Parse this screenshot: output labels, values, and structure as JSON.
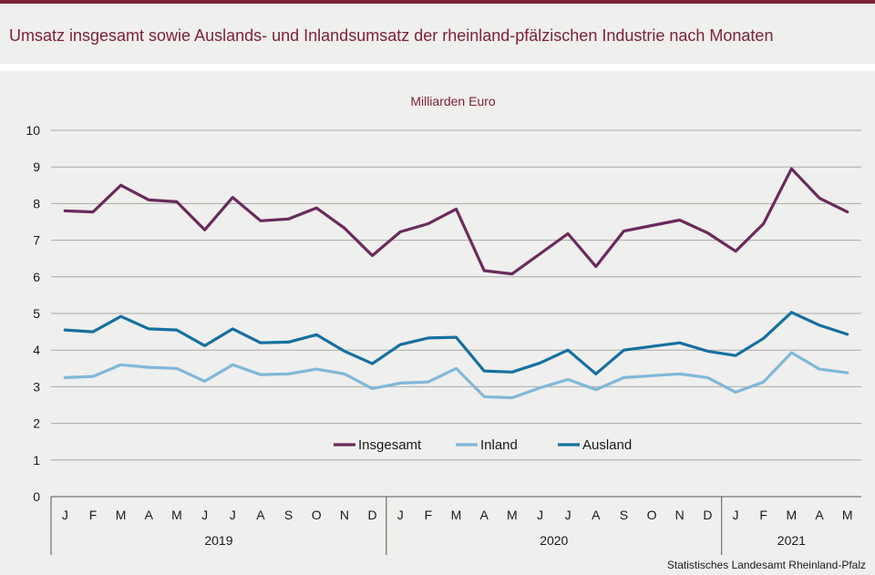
{
  "header": {
    "title": "Umsatz insgesamt sowie Auslands- und Inlandsumsatz der rheinland-pfälzischen Industrie nach Monaten"
  },
  "footer": {
    "source": "Statistisches Landesamt  Rheinland-Pfalz"
  },
  "chart_data": {
    "type": "line",
    "subtitle": "Milliarden Euro",
    "ylim": [
      0,
      10
    ],
    "yticks": [
      0,
      1,
      2,
      3,
      4,
      5,
      6,
      7,
      8,
      9,
      10
    ],
    "categories": [
      "J",
      "F",
      "M",
      "A",
      "M",
      "J",
      "J",
      "A",
      "S",
      "O",
      "N",
      "D",
      "J",
      "F",
      "M",
      "A",
      "M",
      "J",
      "J",
      "A",
      "S",
      "O",
      "N",
      "D",
      "J",
      "F",
      "M",
      "A",
      "M"
    ],
    "years": [
      {
        "label": "2019",
        "span": 12
      },
      {
        "label": "2020",
        "span": 12
      },
      {
        "label": "2021",
        "span": 5
      }
    ],
    "grid": true,
    "legend_position": "inside-bottom-center",
    "series": [
      {
        "name": "Insgesamt",
        "color": "#6a2a5c",
        "values": [
          7.8,
          7.77,
          8.5,
          8.1,
          8.05,
          7.28,
          8.17,
          7.53,
          7.58,
          7.88,
          7.33,
          6.58,
          7.23,
          7.45,
          7.85,
          6.17,
          6.08,
          6.63,
          7.18,
          6.28,
          7.25,
          7.4,
          7.55,
          7.2,
          6.7,
          7.45,
          8.95,
          8.15,
          7.77
        ]
      },
      {
        "name": "Inland",
        "color": "#7fb8d9",
        "values": [
          3.25,
          3.28,
          3.6,
          3.53,
          3.5,
          3.15,
          3.6,
          3.33,
          3.35,
          3.48,
          3.35,
          2.95,
          3.1,
          3.13,
          3.5,
          2.73,
          2.7,
          2.97,
          3.2,
          2.92,
          3.25,
          3.3,
          3.35,
          3.25,
          2.85,
          3.13,
          3.93,
          3.48,
          3.38
        ]
      },
      {
        "name": "Ausland",
        "color": "#1570a0",
        "values": [
          4.55,
          4.5,
          4.92,
          4.58,
          4.55,
          4.12,
          4.58,
          4.2,
          4.22,
          4.42,
          3.97,
          3.63,
          4.15,
          4.33,
          4.35,
          3.43,
          3.4,
          3.65,
          4.0,
          3.35,
          4.0,
          4.1,
          4.2,
          3.97,
          3.85,
          4.32,
          5.03,
          4.68,
          4.43
        ]
      }
    ]
  }
}
